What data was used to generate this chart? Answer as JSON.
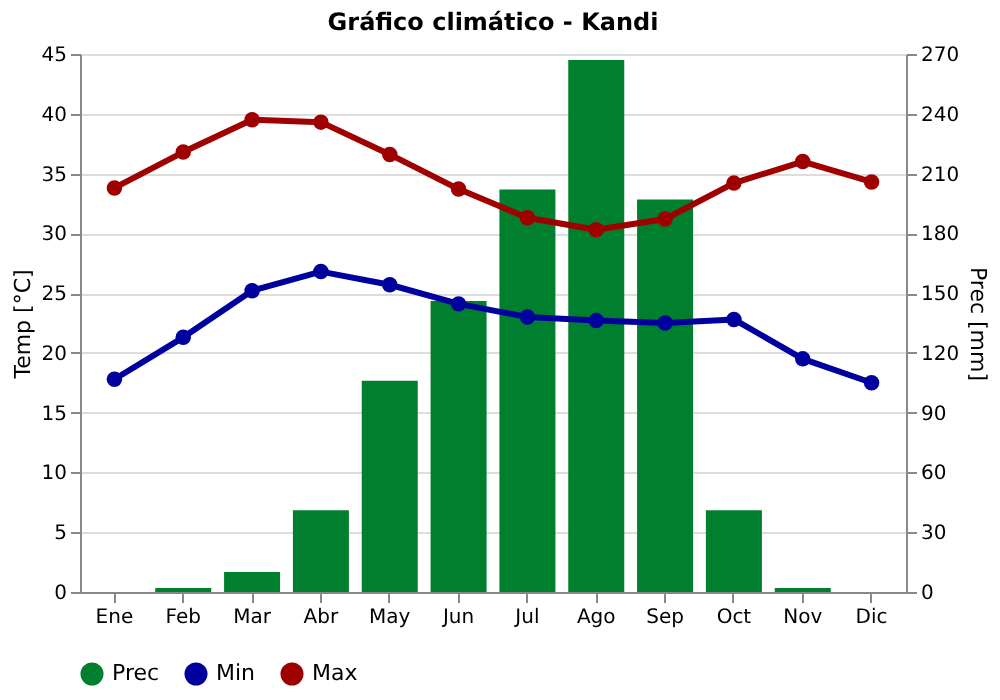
{
  "chart_data": {
    "type": "bar",
    "title": "Gráfico climático - Kandi",
    "ylabel": "Temp [°C]",
    "y2label": "Prec [mm]",
    "categories": [
      "Ene",
      "Feb",
      "Mar",
      "Abr",
      "May",
      "Jun",
      "Jul",
      "Ago",
      "Sep",
      "Oct",
      "Nov",
      "Dic"
    ],
    "series": [
      {
        "name": "Prec",
        "axis": "y2",
        "color": "#007f2f",
        "values": [
          0,
          2,
          10,
          41,
          106,
          146,
          202,
          267,
          197,
          41,
          2,
          0
        ]
      },
      {
        "name": "Min",
        "type": "line",
        "color": "#00009f",
        "values": [
          17.8,
          21.3,
          25.2,
          26.8,
          25.7,
          24.1,
          23.0,
          22.7,
          22.5,
          22.8,
          19.5,
          17.5
        ]
      },
      {
        "name": "Max",
        "type": "line",
        "color": "#9f0000",
        "values": [
          33.8,
          36.8,
          39.5,
          39.3,
          36.6,
          33.7,
          31.3,
          30.3,
          31.2,
          34.2,
          36.0,
          34.3
        ]
      }
    ],
    "ylim": [
      0,
      45
    ],
    "yticks": [
      0,
      5,
      10,
      15,
      20,
      25,
      30,
      35,
      40,
      45
    ],
    "y2lim": [
      0,
      270
    ],
    "y2ticks": [
      0,
      30,
      60,
      90,
      120,
      150,
      180,
      210,
      240,
      270
    ],
    "grid": "y",
    "legend": "bottom",
    "marker": "circle",
    "line_style": "solid"
  }
}
